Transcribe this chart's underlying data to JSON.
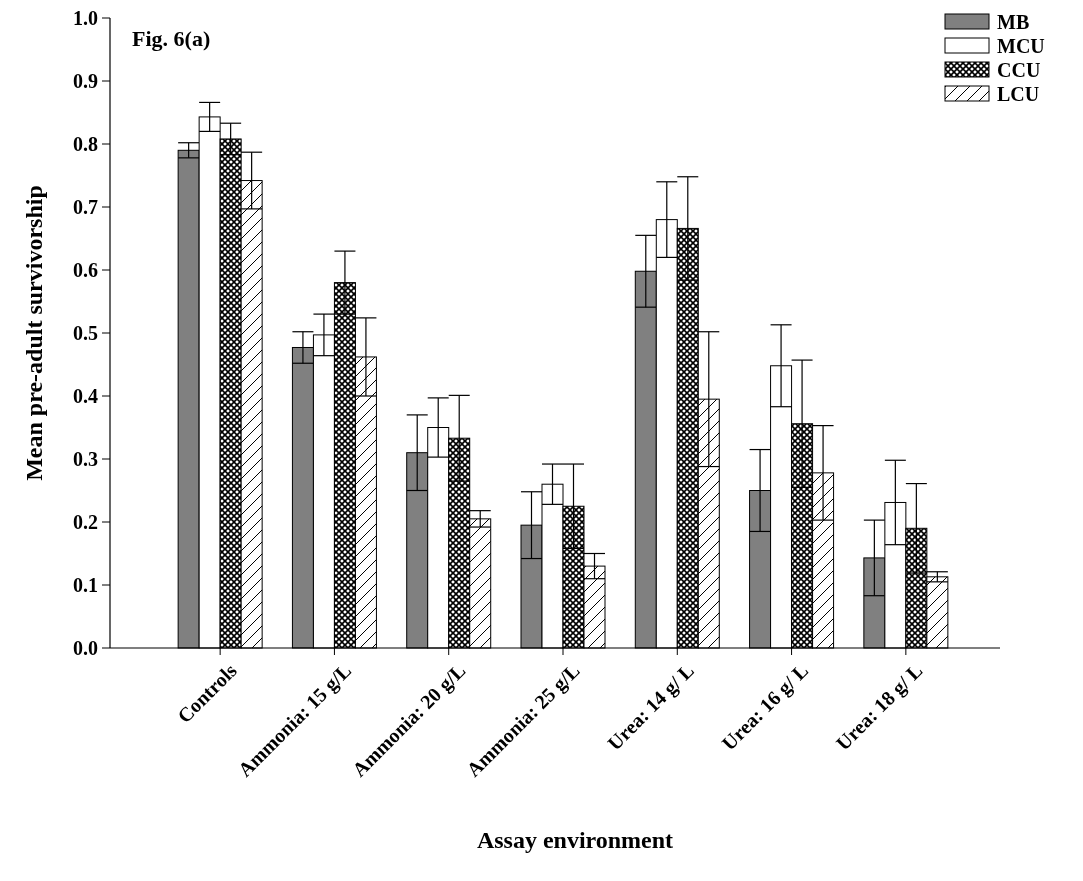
{
  "chart_data": {
    "type": "bar",
    "title": "Fig. 6(a)",
    "xlabel": "Assay environment",
    "ylabel": "Mean pre-adult survivorship",
    "categories": [
      "Controls",
      "Ammonia: 15 g/L",
      "Ammonia: 20 g/L",
      "Ammonia: 25 g/L",
      "Urea: 14 g/ L",
      "Urea: 16 g/ L",
      "Urea: 18 g/ L"
    ],
    "series": [
      {
        "name": "MB",
        "color": "#808080",
        "values": [
          0.79,
          0.477,
          0.31,
          0.195,
          0.598,
          0.25,
          0.143
        ],
        "errors": [
          0.012,
          0.025,
          0.06,
          0.053,
          0.057,
          0.065,
          0.06
        ]
      },
      {
        "name": "MCU",
        "color": "#ffffff",
        "values": [
          0.843,
          0.497,
          0.35,
          0.26,
          0.68,
          0.448,
          0.231
        ],
        "errors": [
          0.023,
          0.033,
          0.047,
          0.032,
          0.06,
          0.065,
          0.067
        ]
      },
      {
        "name": "CCU",
        "color": "#000000",
        "values": [
          0.808,
          0.58,
          0.333,
          0.225,
          0.666,
          0.356,
          0.19
        ],
        "errors": [
          0.025,
          0.05,
          0.068,
          0.067,
          0.082,
          0.101,
          0.071
        ]
      },
      {
        "name": "LCU",
        "color": "#000000",
        "values": [
          0.742,
          0.462,
          0.205,
          0.13,
          0.395,
          0.278,
          0.113
        ],
        "errors": [
          0.045,
          0.062,
          0.013,
          0.02,
          0.107,
          0.075,
          0.008
        ]
      }
    ],
    "ylim": [
      0,
      1
    ],
    "yticks": [
      {
        "value": 0,
        "label": "0.0"
      },
      {
        "value": 0.1,
        "label": "0.1"
      },
      {
        "value": 0.2,
        "label": "0.2"
      },
      {
        "value": 0.3,
        "label": "0.3"
      },
      {
        "value": 0.4,
        "label": "0.4"
      },
      {
        "value": 0.5,
        "label": "0.5"
      },
      {
        "value": 0.6,
        "label": "0.6"
      },
      {
        "value": 0.7,
        "label": "0.7"
      },
      {
        "value": 0.8,
        "label": "0.8"
      },
      {
        "value": 0.9,
        "label": "0.9"
      },
      {
        "value": 1,
        "label": "1.0"
      }
    ],
    "grid": false,
    "legend": "top right"
  }
}
